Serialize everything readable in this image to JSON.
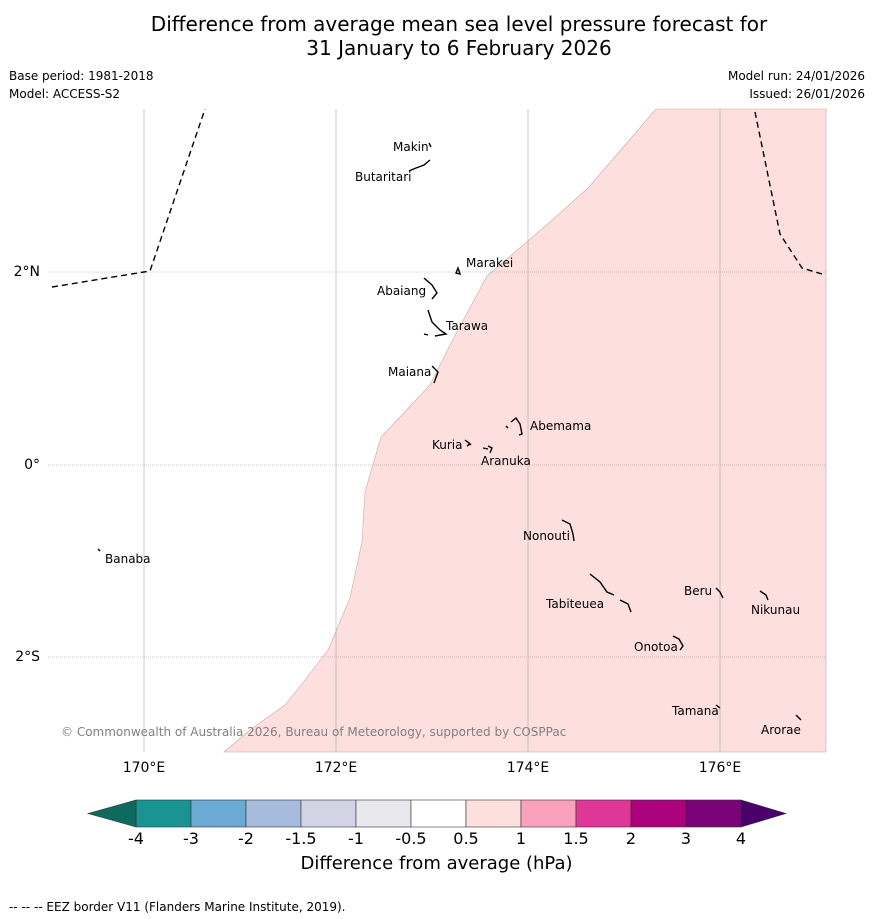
{
  "title": {
    "line1": "Difference from average mean sea level pressure forecast for",
    "line2": "31 January to 6 February 2026"
  },
  "meta": {
    "base_period": "Base period: 1981-2018",
    "model": "Model: ACCESS-S2",
    "model_run": "Model run: 24/01/2026",
    "issued": "Issued: 26/01/2026"
  },
  "map": {
    "lon_labels": [
      "170°E",
      "172°E",
      "174°E",
      "176°E"
    ],
    "lat_labels": [
      "2°N",
      "0°",
      "2°S"
    ],
    "islands": [
      "Makin",
      "Butaritari",
      "Marakei",
      "Abaiang",
      "Tarawa",
      "Maiana",
      "Abemama",
      "Kuria",
      "Aranuka",
      "Banaba",
      "Nonouti",
      "Tabiteuea",
      "Beru",
      "Nikunau",
      "Onotoa",
      "Tamana",
      "Arorae"
    ],
    "copyright": "© Commonwealth of Australia 2026, Bureau of Meteorology, supported by COSPPac",
    "anomaly_region": {
      "range_hPa": [
        0.5,
        1
      ],
      "color": "#fddfdd"
    },
    "land_color": "#000000",
    "eez_style": "dashed"
  },
  "colorbar": {
    "ticks": [
      "-4",
      "-3",
      "-2",
      "-1.5",
      "-1",
      "-0.5",
      "0.5",
      "1",
      "1.5",
      "2",
      "3",
      "4"
    ],
    "colors": [
      "#1a9393",
      "#6aaad4",
      "#a7bbdc",
      "#d3d3e6",
      "#e9e8ec",
      "#ffffff",
      "#fddfdd",
      "#f9a1bd",
      "#de3797",
      "#ac017c",
      "#7a0177"
    ],
    "extend_low_color": "#0e6a5e",
    "extend_high_color": "#49006a",
    "label": "Difference from average (hPa)"
  },
  "footer": {
    "eez_note": "--  --  -- EEZ border V11 (Flanders Marine Institute, 2019)."
  }
}
